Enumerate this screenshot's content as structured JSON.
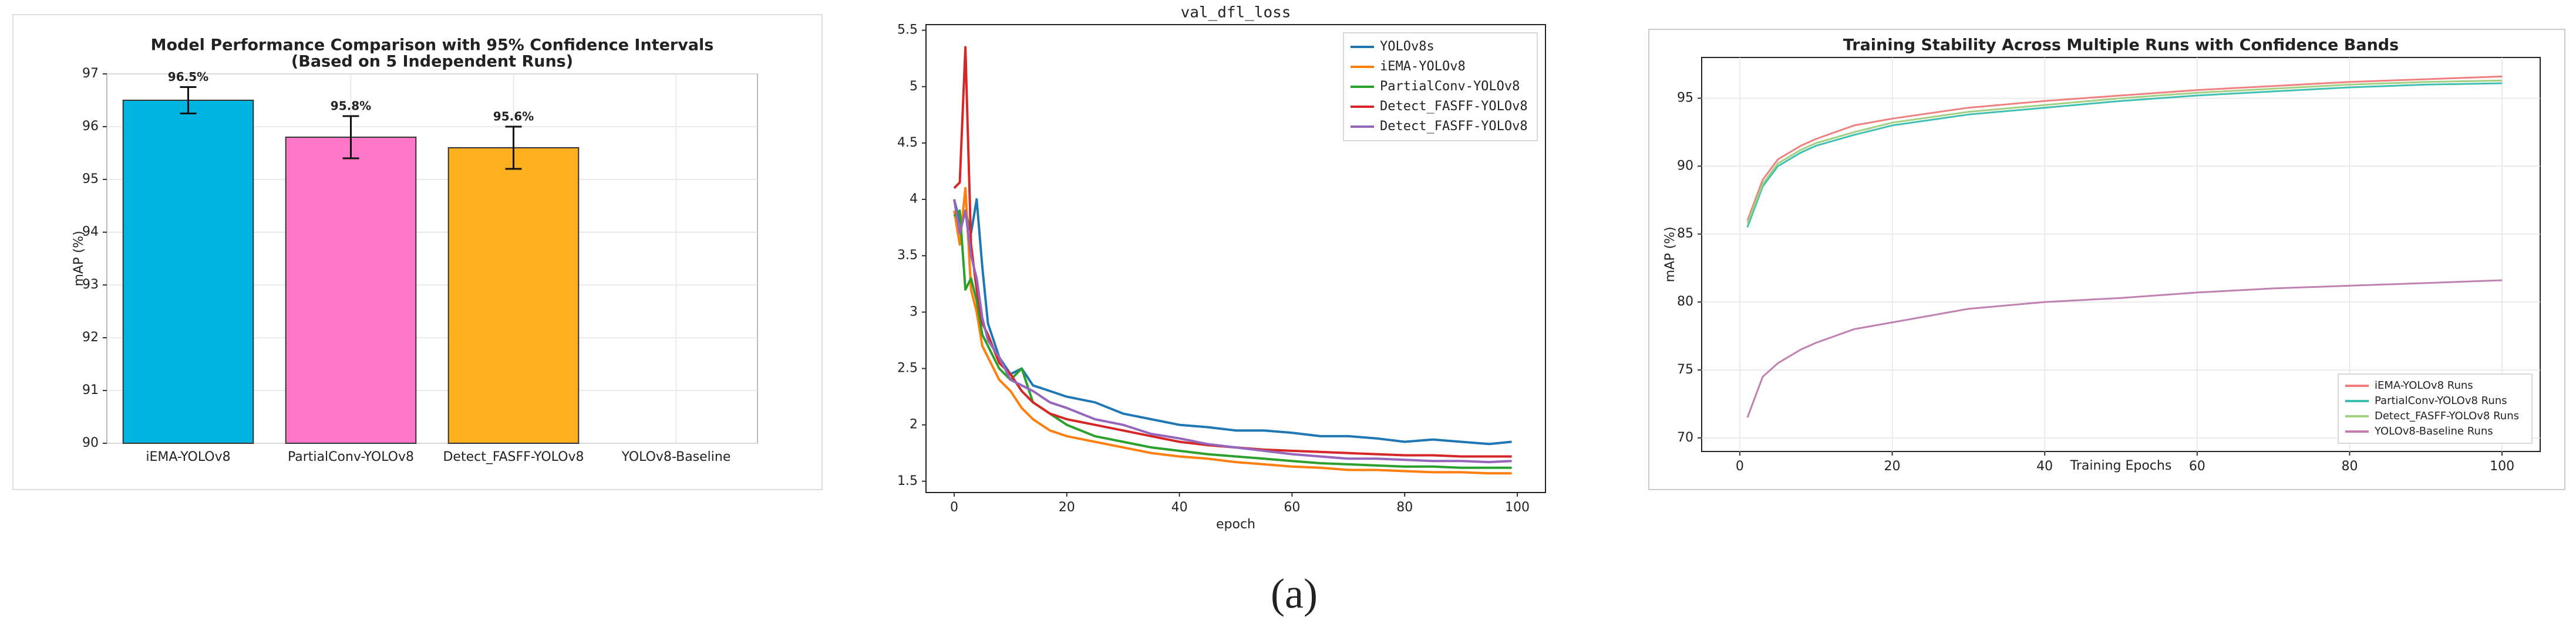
{
  "chart_data": [
    {
      "type": "bar",
      "title": "Model Performance Comparison with 95% Confidence Intervals",
      "subtitle": "(Based on 5 Independent Runs)",
      "ylabel": "mAP (%)",
      "categories": [
        "iEMA-YOLOv8",
        "PartialConv-YOLOv8",
        "Detect_FASFF-YOLOv8",
        "YOLOv8-Baseline"
      ],
      "values": [
        96.5,
        95.8,
        95.6,
        null
      ],
      "errors": [
        0.25,
        0.4,
        0.4,
        null
      ],
      "value_labels": [
        "96.5%",
        "95.8%",
        "95.6%",
        null
      ],
      "colors": [
        "#00b4e0",
        "#ff77c8",
        "#ffb020",
        "#888888"
      ],
      "ylim": [
        90,
        97
      ],
      "yticks": [
        90,
        91,
        92,
        93,
        94,
        95,
        96,
        97
      ],
      "grid": true
    },
    {
      "type": "line",
      "title": "val_dfl_loss",
      "xlabel": "epoch",
      "x": [
        0,
        1,
        2,
        3,
        4,
        5,
        6,
        8,
        10,
        12,
        14,
        17,
        20,
        25,
        30,
        35,
        40,
        45,
        50,
        55,
        60,
        65,
        70,
        75,
        80,
        85,
        90,
        95,
        99
      ],
      "series": [
        {
          "name": "YOLOv8s",
          "color": "#1f77b4",
          "values": [
            4.0,
            3.8,
            3.9,
            3.7,
            4.0,
            3.4,
            2.9,
            2.6,
            2.45,
            2.5,
            2.35,
            2.3,
            2.25,
            2.2,
            2.1,
            2.05,
            2.0,
            1.98,
            1.95,
            1.95,
            1.93,
            1.9,
            1.9,
            1.88,
            1.85,
            1.87,
            1.85,
            1.83,
            1.85
          ]
        },
        {
          "name": "iEMA-YOLOv8",
          "color": "#ff7f0e",
          "values": [
            3.9,
            3.6,
            4.1,
            3.2,
            3.0,
            2.7,
            2.6,
            2.4,
            2.3,
            2.15,
            2.05,
            1.95,
            1.9,
            1.85,
            1.8,
            1.75,
            1.72,
            1.7,
            1.67,
            1.65,
            1.63,
            1.62,
            1.6,
            1.6,
            1.59,
            1.58,
            1.58,
            1.57,
            1.57
          ]
        },
        {
          "name": "PartialConv-YOLOv8",
          "color": "#2ca02c",
          "values": [
            3.85,
            3.9,
            3.2,
            3.3,
            3.1,
            2.8,
            2.7,
            2.5,
            2.4,
            2.5,
            2.2,
            2.1,
            2.0,
            1.9,
            1.85,
            1.8,
            1.77,
            1.74,
            1.72,
            1.7,
            1.68,
            1.66,
            1.65,
            1.64,
            1.63,
            1.63,
            1.62,
            1.62,
            1.62
          ]
        },
        {
          "name": "Detect_FASFF-YOLOv8",
          "color": "#d62728",
          "values": [
            4.1,
            4.15,
            5.35,
            3.6,
            3.2,
            2.9,
            2.8,
            2.55,
            2.45,
            2.3,
            2.2,
            2.1,
            2.05,
            2.0,
            1.95,
            1.9,
            1.85,
            1.82,
            1.8,
            1.78,
            1.77,
            1.76,
            1.75,
            1.74,
            1.73,
            1.73,
            1.72,
            1.72,
            1.72
          ]
        },
        {
          "name": "Detect_FASFF-YOLOv8",
          "color": "#9467bd",
          "values": [
            4.0,
            3.7,
            3.9,
            3.5,
            3.3,
            2.95,
            2.75,
            2.6,
            2.4,
            2.35,
            2.3,
            2.2,
            2.15,
            2.05,
            2.0,
            1.92,
            1.88,
            1.83,
            1.8,
            1.77,
            1.74,
            1.72,
            1.7,
            1.7,
            1.69,
            1.68,
            1.68,
            1.67,
            1.68
          ]
        }
      ],
      "xlim": [
        -5,
        105
      ],
      "xticks": [
        0,
        20,
        40,
        60,
        80,
        100
      ],
      "ylim": [
        1.4,
        5.55
      ],
      "yticks": [
        1.5,
        2.0,
        2.5,
        3.0,
        3.5,
        4.0,
        4.5,
        5.0,
        5.5
      ],
      "legend": "upper right",
      "grid": false
    },
    {
      "type": "line",
      "title": "Training Stability Across Multiple Runs with Confidence Bands",
      "xlabel": "Training Epochs",
      "ylabel": "mAP (%)",
      "x": [
        1,
        3,
        5,
        8,
        10,
        15,
        20,
        30,
        40,
        50,
        60,
        70,
        80,
        90,
        100
      ],
      "series": [
        {
          "name": "iEMA-YOLOv8 Runs",
          "color": "#f08080",
          "values": [
            86,
            89,
            90.5,
            91.5,
            92,
            93,
            93.5,
            94.3,
            94.8,
            95.2,
            95.6,
            95.9,
            96.2,
            96.4,
            96.6
          ]
        },
        {
          "name": "PartialConv-YOLOv8 Runs",
          "color": "#40c0b0",
          "values": [
            85.5,
            88.5,
            90,
            91,
            91.5,
            92.3,
            93,
            93.8,
            94.3,
            94.8,
            95.2,
            95.5,
            95.8,
            96,
            96.1
          ]
        },
        {
          "name": "Detect_FASFF-YOLOv8 Runs",
          "color": "#a0d080",
          "values": [
            85.8,
            88.7,
            90.2,
            91.2,
            91.7,
            92.5,
            93.2,
            94,
            94.5,
            95,
            95.4,
            95.7,
            96,
            96.2,
            96.3
          ]
        },
        {
          "name": "YOLOv8-Baseline Runs",
          "color": "#c080b0",
          "values": [
            71.5,
            74.5,
            75.5,
            76.5,
            77,
            78,
            78.5,
            79.5,
            80,
            80.3,
            80.7,
            81,
            81.2,
            81.4,
            81.6
          ]
        }
      ],
      "xlim": [
        -5,
        105
      ],
      "xticks": [
        0,
        20,
        40,
        60,
        80,
        100
      ],
      "ylim": [
        69,
        98
      ],
      "yticks": [
        70,
        75,
        80,
        85,
        90,
        95
      ],
      "legend": "lower right",
      "grid": true
    }
  ],
  "caption": "(a)"
}
